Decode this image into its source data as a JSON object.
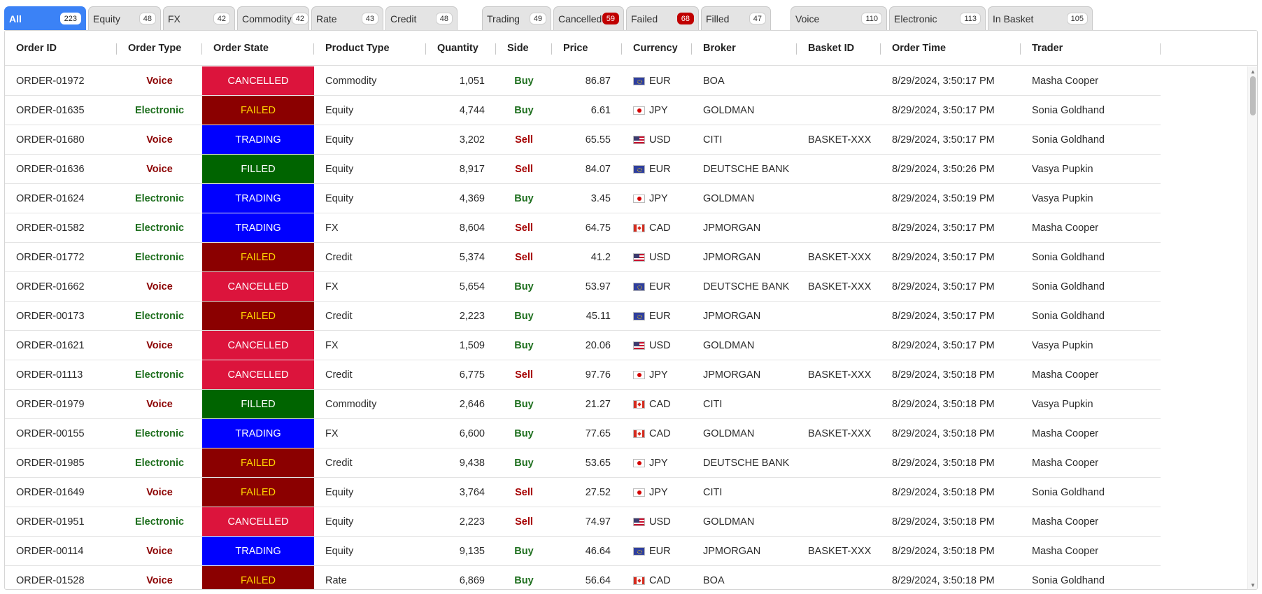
{
  "tabs": [
    {
      "label": "All",
      "count": "223",
      "active": true
    },
    {
      "label": "Equity",
      "count": "48"
    },
    {
      "label": "FX",
      "count": "42"
    },
    {
      "label": "Commodity",
      "count": "42"
    },
    {
      "label": "Rate",
      "count": "43"
    },
    {
      "label": "Credit",
      "count": "48"
    },
    {
      "label": "Trading",
      "count": "49"
    },
    {
      "label": "Cancelled",
      "count": "59",
      "alert": true
    },
    {
      "label": "Failed",
      "count": "68",
      "alert": true
    },
    {
      "label": "Filled",
      "count": "47"
    },
    {
      "label": "Voice",
      "count": "110"
    },
    {
      "label": "Electronic",
      "count": "113"
    },
    {
      "label": "In Basket",
      "count": "105"
    }
  ],
  "columns": [
    "Order ID",
    "Order Type",
    "Order State",
    "Product Type",
    "Quantity",
    "Side",
    "Price",
    "Currency",
    "Broker",
    "Basket ID",
    "Order Time",
    "Trader"
  ],
  "state_colors": {
    "CANCELLED": "#dc143c",
    "FAILED": "#8b0000",
    "TRADING": "#0000ff",
    "FILLED": "#006400"
  },
  "rows": [
    {
      "id": "ORDER-01972",
      "type": "Voice",
      "state": "CANCELLED",
      "product": "Commodity",
      "qty": "1,051",
      "side": "Buy",
      "price": "86.87",
      "ccy": "EUR",
      "broker": "BOA",
      "basket": "",
      "time": "8/29/2024, 3:50:17 PM",
      "trader": "Masha Cooper"
    },
    {
      "id": "ORDER-01635",
      "type": "Electronic",
      "state": "FAILED",
      "product": "Equity",
      "qty": "4,744",
      "side": "Buy",
      "price": "6.61",
      "ccy": "JPY",
      "broker": "GOLDMAN",
      "basket": "",
      "time": "8/29/2024, 3:50:17 PM",
      "trader": "Sonia Goldhand"
    },
    {
      "id": "ORDER-01680",
      "type": "Voice",
      "state": "TRADING",
      "product": "Equity",
      "qty": "3,202",
      "side": "Sell",
      "price": "65.55",
      "ccy": "USD",
      "broker": "CITI",
      "basket": "BASKET-XXX",
      "time": "8/29/2024, 3:50:17 PM",
      "trader": "Sonia Goldhand"
    },
    {
      "id": "ORDER-01636",
      "type": "Voice",
      "state": "FILLED",
      "product": "Equity",
      "qty": "8,917",
      "side": "Sell",
      "price": "84.07",
      "ccy": "EUR",
      "broker": "DEUTSCHE BANK",
      "basket": "",
      "time": "8/29/2024, 3:50:26 PM",
      "trader": "Vasya Pupkin"
    },
    {
      "id": "ORDER-01624",
      "type": "Electronic",
      "state": "TRADING",
      "product": "Equity",
      "qty": "4,369",
      "side": "Buy",
      "price": "3.45",
      "ccy": "JPY",
      "broker": "GOLDMAN",
      "basket": "",
      "time": "8/29/2024, 3:50:19 PM",
      "trader": "Vasya Pupkin"
    },
    {
      "id": "ORDER-01582",
      "type": "Electronic",
      "state": "TRADING",
      "product": "FX",
      "qty": "8,604",
      "side": "Sell",
      "price": "64.75",
      "ccy": "CAD",
      "broker": "JPMORGAN",
      "basket": "",
      "time": "8/29/2024, 3:50:17 PM",
      "trader": "Masha Cooper"
    },
    {
      "id": "ORDER-01772",
      "type": "Electronic",
      "state": "FAILED",
      "product": "Credit",
      "qty": "5,374",
      "side": "Sell",
      "price": "41.2",
      "ccy": "USD",
      "broker": "JPMORGAN",
      "basket": "BASKET-XXX",
      "time": "8/29/2024, 3:50:17 PM",
      "trader": "Sonia Goldhand"
    },
    {
      "id": "ORDER-01662",
      "type": "Voice",
      "state": "CANCELLED",
      "product": "FX",
      "qty": "5,654",
      "side": "Buy",
      "price": "53.97",
      "ccy": "EUR",
      "broker": "DEUTSCHE BANK",
      "basket": "BASKET-XXX",
      "time": "8/29/2024, 3:50:17 PM",
      "trader": "Sonia Goldhand"
    },
    {
      "id": "ORDER-00173",
      "type": "Electronic",
      "state": "FAILED",
      "product": "Credit",
      "qty": "2,223",
      "side": "Buy",
      "price": "45.11",
      "ccy": "EUR",
      "broker": "JPMORGAN",
      "basket": "",
      "time": "8/29/2024, 3:50:17 PM",
      "trader": "Sonia Goldhand"
    },
    {
      "id": "ORDER-01621",
      "type": "Voice",
      "state": "CANCELLED",
      "product": "FX",
      "qty": "1,509",
      "side": "Buy",
      "price": "20.06",
      "ccy": "USD",
      "broker": "GOLDMAN",
      "basket": "",
      "time": "8/29/2024, 3:50:17 PM",
      "trader": "Vasya Pupkin"
    },
    {
      "id": "ORDER-01113",
      "type": "Electronic",
      "state": "CANCELLED",
      "product": "Credit",
      "qty": "6,775",
      "side": "Sell",
      "price": "97.76",
      "ccy": "JPY",
      "broker": "JPMORGAN",
      "basket": "BASKET-XXX",
      "time": "8/29/2024, 3:50:18 PM",
      "trader": "Masha Cooper"
    },
    {
      "id": "ORDER-01979",
      "type": "Voice",
      "state": "FILLED",
      "product": "Commodity",
      "qty": "2,646",
      "side": "Buy",
      "price": "21.27",
      "ccy": "CAD",
      "broker": "CITI",
      "basket": "",
      "time": "8/29/2024, 3:50:18 PM",
      "trader": "Vasya Pupkin"
    },
    {
      "id": "ORDER-00155",
      "type": "Electronic",
      "state": "TRADING",
      "product": "FX",
      "qty": "6,600",
      "side": "Buy",
      "price": "77.65",
      "ccy": "CAD",
      "broker": "GOLDMAN",
      "basket": "BASKET-XXX",
      "time": "8/29/2024, 3:50:18 PM",
      "trader": "Masha Cooper"
    },
    {
      "id": "ORDER-01985",
      "type": "Electronic",
      "state": "FAILED",
      "product": "Credit",
      "qty": "9,438",
      "side": "Buy",
      "price": "53.65",
      "ccy": "JPY",
      "broker": "DEUTSCHE BANK",
      "basket": "",
      "time": "8/29/2024, 3:50:18 PM",
      "trader": "Masha Cooper"
    },
    {
      "id": "ORDER-01649",
      "type": "Voice",
      "state": "FAILED",
      "product": "Equity",
      "qty": "3,764",
      "side": "Sell",
      "price": "27.52",
      "ccy": "JPY",
      "broker": "CITI",
      "basket": "",
      "time": "8/29/2024, 3:50:18 PM",
      "trader": "Sonia Goldhand"
    },
    {
      "id": "ORDER-01951",
      "type": "Electronic",
      "state": "CANCELLED",
      "product": "Equity",
      "qty": "2,223",
      "side": "Sell",
      "price": "74.97",
      "ccy": "USD",
      "broker": "GOLDMAN",
      "basket": "",
      "time": "8/29/2024, 3:50:18 PM",
      "trader": "Masha Cooper"
    },
    {
      "id": "ORDER-00114",
      "type": "Voice",
      "state": "TRADING",
      "product": "Equity",
      "qty": "9,135",
      "side": "Buy",
      "price": "46.64",
      "ccy": "EUR",
      "broker": "JPMORGAN",
      "basket": "BASKET-XXX",
      "time": "8/29/2024, 3:50:18 PM",
      "trader": "Masha Cooper"
    },
    {
      "id": "ORDER-01528",
      "type": "Voice",
      "state": "FAILED",
      "product": "Rate",
      "qty": "6,869",
      "side": "Buy",
      "price": "56.64",
      "ccy": "CAD",
      "broker": "BOA",
      "basket": "",
      "time": "8/29/2024, 3:50:18 PM",
      "trader": "Sonia Goldhand"
    }
  ]
}
